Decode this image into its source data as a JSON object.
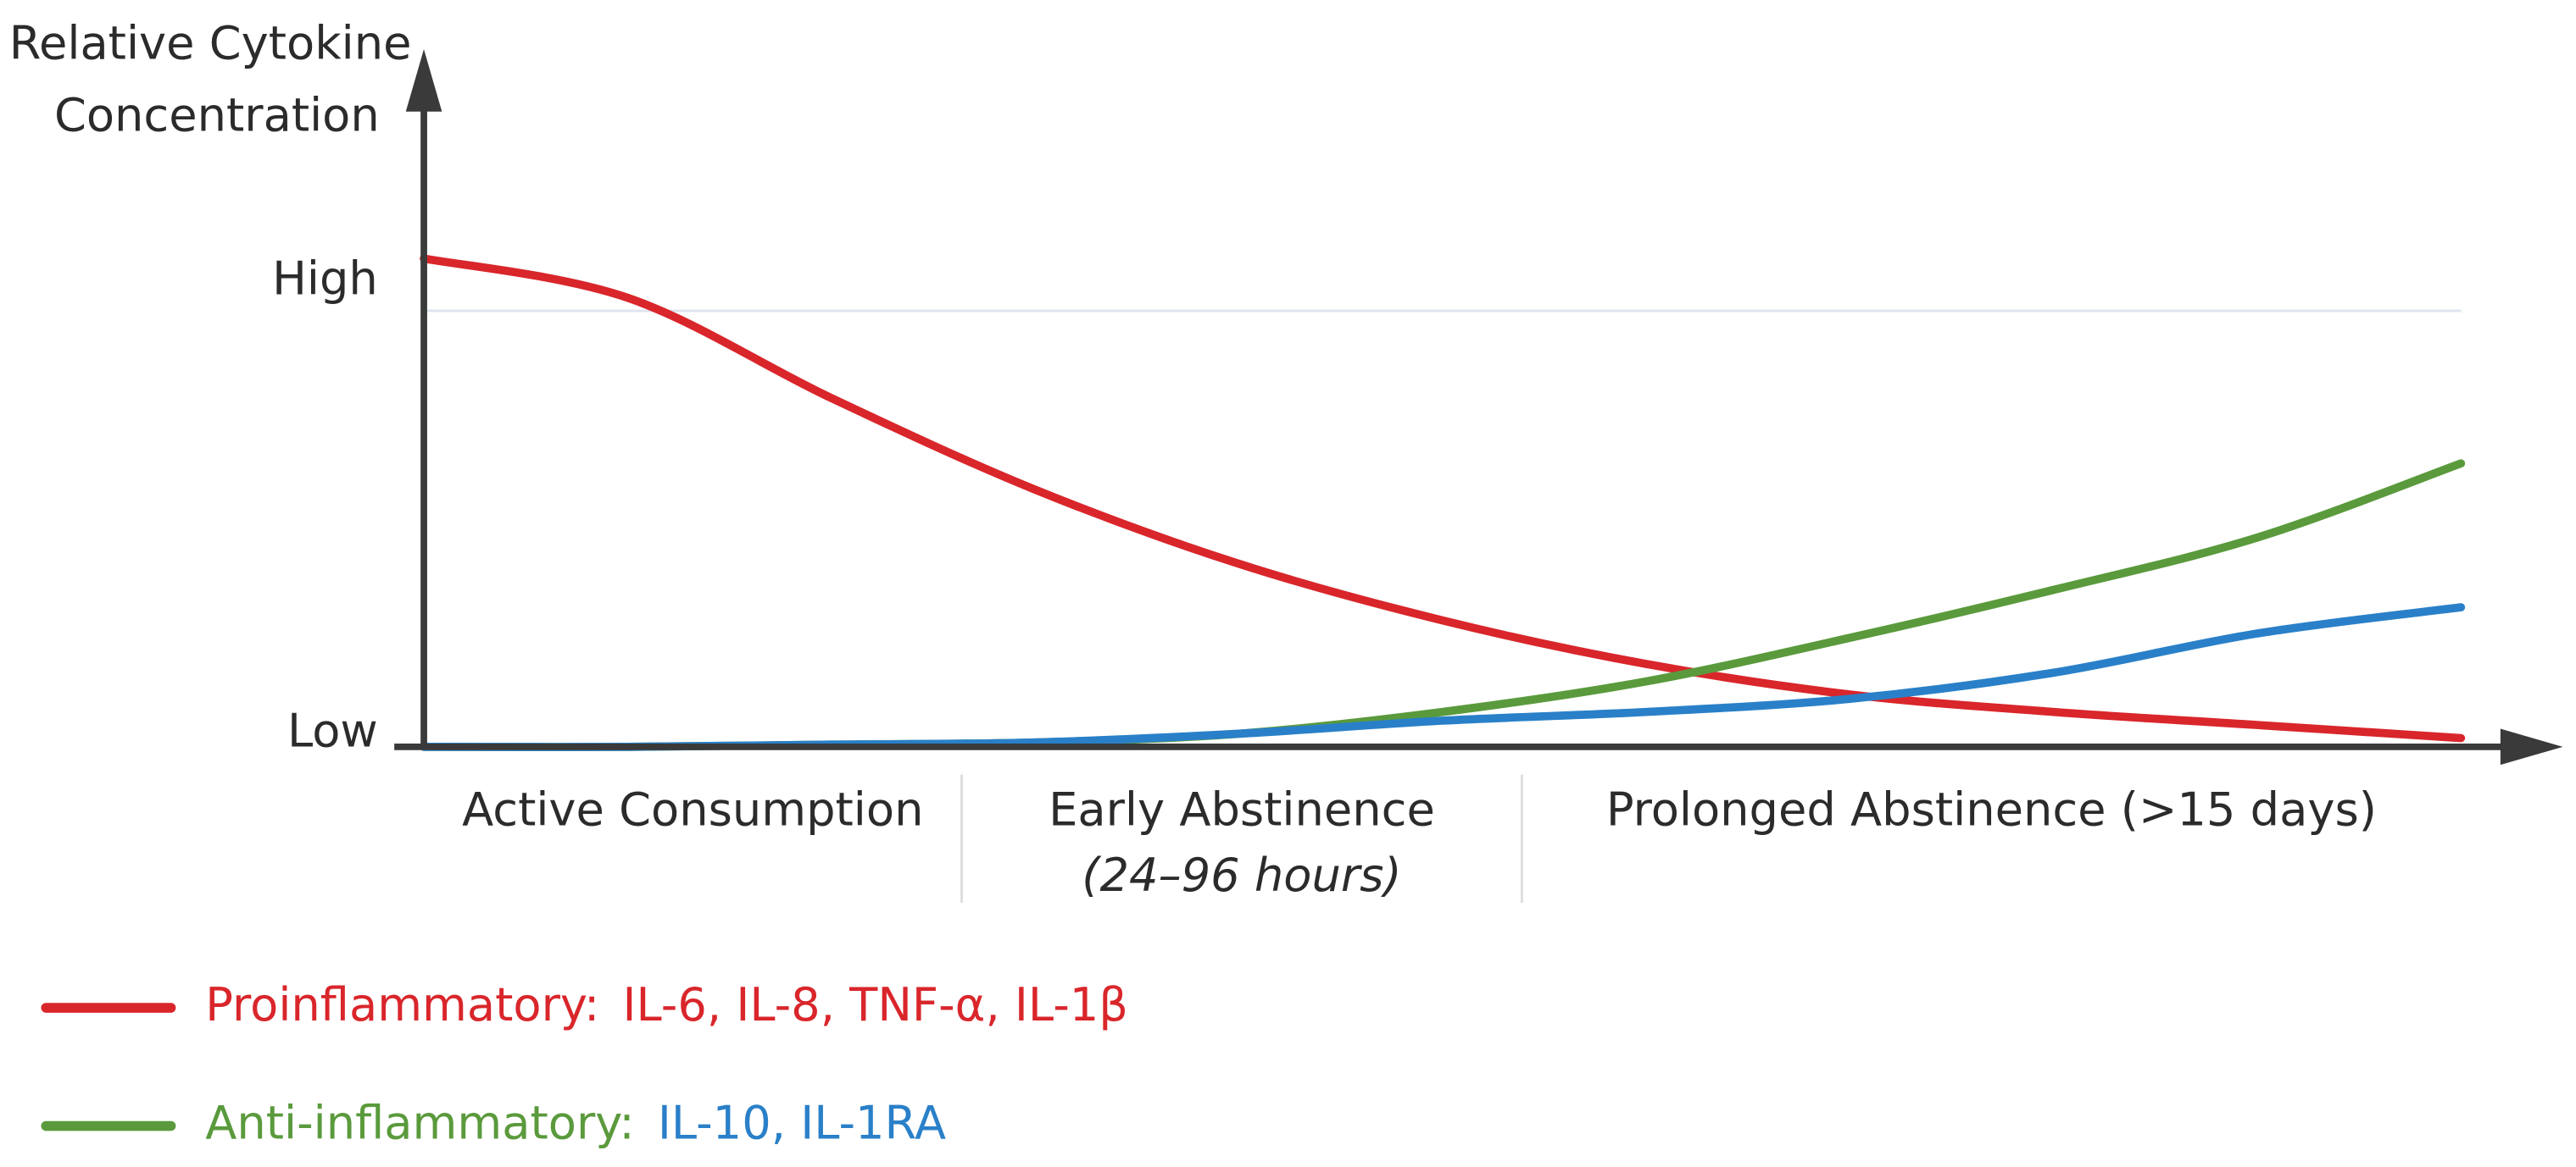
{
  "chart_data": {
    "type": "line",
    "ylabel": [
      "Relative Cytokine",
      "Concentration"
    ],
    "ylim": [
      0,
      1.6
    ],
    "yticks": [
      {
        "value": 0,
        "label": "Low"
      },
      {
        "value": 1,
        "label": "High"
      }
    ],
    "xlim": [
      0,
      105
    ],
    "x": [
      0,
      10,
      20,
      30,
      40,
      50,
      60,
      70,
      80,
      90,
      100
    ],
    "series": [
      {
        "color": "#d9262b",
        "values": [
          1.12,
          1.03,
          0.8,
          0.59,
          0.42,
          0.29,
          0.19,
          0.12,
          0.08,
          0.05,
          0.02
        ]
      },
      {
        "color": "#5a9a3c",
        "values": [
          0,
          0,
          0.005,
          0.01,
          0.03,
          0.08,
          0.15,
          0.25,
          0.36,
          0.48,
          0.65
        ]
      },
      {
        "color": "#2a80c8",
        "values": [
          0,
          0,
          0.005,
          0.01,
          0.03,
          0.06,
          0.08,
          0.11,
          0.17,
          0.26,
          0.32
        ]
      }
    ],
    "phase_bounds": [
      0,
      26.4,
      53.9,
      100
    ],
    "phases": [
      {
        "label": "Active Consumption"
      },
      {
        "label": "Early Abstinence",
        "sublabel": "(24–96 hours)"
      },
      {
        "label": "Prolonged Abstinence (>15 days)"
      }
    ],
    "legend": [
      {
        "label": "Proinflammatory:",
        "color": "#d9262b",
        "items": "IL-6, IL-8, TNF-α, IL-1β",
        "items_color": "#d9262b"
      },
      {
        "label": "Anti-inflammatory:",
        "color": "#5a9a3c",
        "items": "IL-10, IL-1RA",
        "items_color": "#2a80c8"
      }
    ]
  }
}
